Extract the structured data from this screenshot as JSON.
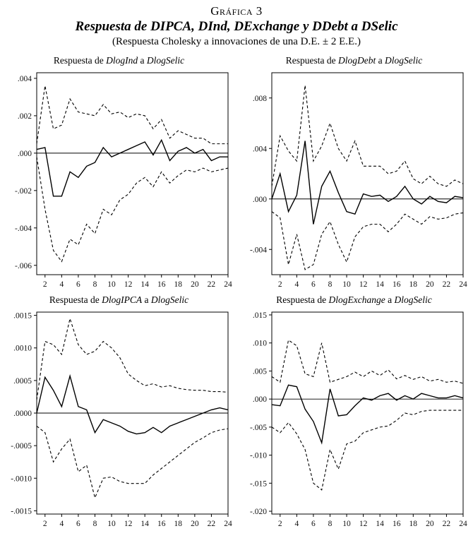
{
  "header": {
    "label": "Gráfica 3",
    "title": "Respuesta de DIPCA, DInd, DExchange y DDebt a DSelic",
    "subtitle": "(Respuesta Cholesky a innovaciones de una D.E. ± 2 E.E.)"
  },
  "chart_data": [
    {
      "type": "line",
      "name": "dlogind",
      "title_parts": {
        "prefix": "Respuesta de ",
        "var1": "DlogInd",
        "mid": " a ",
        "var2": "DlogSelic"
      },
      "x": [
        1,
        2,
        3,
        4,
        5,
        6,
        7,
        8,
        9,
        10,
        11,
        12,
        13,
        14,
        15,
        16,
        17,
        18,
        19,
        20,
        21,
        22,
        23,
        24
      ],
      "xlim": [
        1,
        24
      ],
      "ylim": [
        -0.0065,
        0.0043
      ],
      "x_ticks": [
        2,
        4,
        6,
        8,
        10,
        12,
        14,
        16,
        18,
        20,
        22,
        24
      ],
      "y_ticks": [
        {
          "value": 0.004,
          "label": ".004"
        },
        {
          "value": 0.002,
          "label": ".002"
        },
        {
          "value": 0.0,
          "label": ".000"
        },
        {
          "value": -0.002,
          "label": "-.002"
        },
        {
          "value": -0.004,
          "label": "-.004"
        },
        {
          "value": -0.006,
          "label": "-.006"
        }
      ],
      "series": [
        {
          "name": "response",
          "style": "solid",
          "values": [
            0.0002,
            0.0003,
            -0.0023,
            -0.0023,
            -0.001,
            -0.0013,
            -0.0007,
            -0.0005,
            0.0003,
            -0.0002,
            0.0,
            0.0002,
            0.0004,
            0.0006,
            -0.0001,
            0.0007,
            -0.0004,
            0.0001,
            0.0003,
            0.0,
            0.0002,
            -0.0004,
            -0.0002,
            -0.0002
          ]
        },
        {
          "name": "upper-band",
          "style": "dashed",
          "values": [
            0.0005,
            0.0036,
            0.0013,
            0.0015,
            0.0029,
            0.0022,
            0.0021,
            0.002,
            0.0026,
            0.0021,
            0.0022,
            0.0019,
            0.0021,
            0.002,
            0.0013,
            0.0018,
            0.0008,
            0.0012,
            0.001,
            0.0008,
            0.0008,
            0.0005,
            0.0005,
            0.0005
          ]
        },
        {
          "name": "lower-band",
          "style": "dashed",
          "values": [
            -0.0002,
            -0.003,
            -0.0052,
            -0.0058,
            -0.0046,
            -0.0049,
            -0.0038,
            -0.0043,
            -0.003,
            -0.0033,
            -0.0025,
            -0.0022,
            -0.0016,
            -0.0013,
            -0.0018,
            -0.001,
            -0.0016,
            -0.0012,
            -0.0009,
            -0.001,
            -0.0008,
            -0.001,
            -0.0009,
            -0.0008
          ]
        }
      ]
    },
    {
      "type": "line",
      "name": "dlogdebt",
      "title_parts": {
        "prefix": "Respuesta de ",
        "var1": "DlogDebt",
        "mid": " a ",
        "var2": "DlogSelic"
      },
      "x": [
        1,
        2,
        3,
        4,
        5,
        6,
        7,
        8,
        9,
        10,
        11,
        12,
        13,
        14,
        15,
        16,
        17,
        18,
        19,
        20,
        21,
        22,
        23,
        24
      ],
      "xlim": [
        1,
        24
      ],
      "ylim": [
        -0.006,
        0.01
      ],
      "x_ticks": [
        2,
        4,
        6,
        8,
        10,
        12,
        14,
        16,
        18,
        20,
        22,
        24
      ],
      "y_ticks": [
        {
          "value": 0.008,
          "label": ".008"
        },
        {
          "value": 0.004,
          "label": ".004"
        },
        {
          "value": 0.0,
          "label": ".000"
        },
        {
          "value": -0.004,
          "label": "-.004"
        }
      ],
      "series": [
        {
          "name": "response",
          "style": "solid",
          "values": [
            0.0,
            0.002,
            -0.001,
            0.0003,
            0.0046,
            -0.002,
            0.001,
            0.0022,
            0.0005,
            -0.001,
            -0.0012,
            0.0004,
            0.0002,
            0.0003,
            -0.0002,
            0.0002,
            0.001,
            0.0,
            -0.0004,
            0.0002,
            -0.0002,
            -0.0003,
            0.0002,
            0.0001
          ]
        },
        {
          "name": "upper-band",
          "style": "dashed",
          "values": [
            0.001,
            0.005,
            0.0038,
            0.003,
            0.009,
            0.003,
            0.0042,
            0.006,
            0.004,
            0.003,
            0.0046,
            0.0026,
            0.0026,
            0.0026,
            0.002,
            0.0022,
            0.003,
            0.0016,
            0.0012,
            0.0018,
            0.0012,
            0.001,
            0.0015,
            0.0012
          ]
        },
        {
          "name": "lower-band",
          "style": "dashed",
          "values": [
            -0.001,
            -0.0015,
            -0.0052,
            -0.0028,
            -0.0056,
            -0.0052,
            -0.0028,
            -0.0018,
            -0.0036,
            -0.005,
            -0.003,
            -0.0022,
            -0.002,
            -0.002,
            -0.0026,
            -0.002,
            -0.0012,
            -0.0016,
            -0.002,
            -0.0014,
            -0.0016,
            -0.0015,
            -0.0012,
            -0.0011
          ]
        }
      ]
    },
    {
      "type": "line",
      "name": "dlogipca",
      "title_parts": {
        "prefix": "Respuesta de ",
        "var1": "DlogIPCA",
        "mid": " a ",
        "var2": "DlogSelic"
      },
      "x": [
        1,
        2,
        3,
        4,
        5,
        6,
        7,
        8,
        9,
        10,
        11,
        12,
        13,
        14,
        15,
        16,
        17,
        18,
        19,
        20,
        21,
        22,
        23,
        24
      ],
      "xlim": [
        1,
        24
      ],
      "ylim": [
        -0.00155,
        0.00155
      ],
      "x_ticks": [
        2,
        4,
        6,
        8,
        10,
        12,
        14,
        16,
        18,
        20,
        22,
        24
      ],
      "y_ticks": [
        {
          "value": 0.0015,
          "label": ".0015"
        },
        {
          "value": 0.001,
          "label": ".0010"
        },
        {
          "value": 0.0005,
          "label": ".0005"
        },
        {
          "value": 0.0,
          "label": ".0000"
        },
        {
          "value": -0.0005,
          "label": "-.0005"
        },
        {
          "value": -0.001,
          "label": "-.0010"
        },
        {
          "value": -0.0015,
          "label": "-.0015"
        }
      ],
      "series": [
        {
          "name": "response",
          "style": "solid",
          "values": [
            0.0,
            0.00055,
            0.00035,
            0.0001,
            0.00057,
            0.0001,
            5e-05,
            -0.0003,
            -0.0001,
            -0.00015,
            -0.0002,
            -0.00028,
            -0.00032,
            -0.0003,
            -0.00022,
            -0.0003,
            -0.0002,
            -0.00015,
            -0.0001,
            -5e-05,
            0.0,
            5e-05,
            8e-05,
            5e-05
          ]
        },
        {
          "name": "upper-band",
          "style": "dashed",
          "values": [
            0.0002,
            0.0011,
            0.00105,
            0.0009,
            0.00145,
            0.00105,
            0.0009,
            0.00095,
            0.0011,
            0.001,
            0.00085,
            0.0006,
            0.0005,
            0.00042,
            0.00045,
            0.0004,
            0.00042,
            0.00038,
            0.00036,
            0.00035,
            0.00035,
            0.00033,
            0.00033,
            0.00032
          ]
        },
        {
          "name": "lower-band",
          "style": "dashed",
          "values": [
            -0.0002,
            -0.0003,
            -0.00075,
            -0.00055,
            -0.0004,
            -0.0009,
            -0.0008,
            -0.0013,
            -0.001,
            -0.00098,
            -0.00105,
            -0.00108,
            -0.00108,
            -0.00108,
            -0.00095,
            -0.00085,
            -0.00075,
            -0.00065,
            -0.00055,
            -0.00045,
            -0.00038,
            -0.0003,
            -0.00026,
            -0.00024
          ]
        }
      ]
    },
    {
      "type": "line",
      "name": "dlogexchange",
      "title_parts": {
        "prefix": "Respuesta de ",
        "var1": "DlogExchange",
        "mid": " a ",
        "var2": "DlogSelic"
      },
      "x": [
        1,
        2,
        3,
        4,
        5,
        6,
        7,
        8,
        9,
        10,
        11,
        12,
        13,
        14,
        15,
        16,
        17,
        18,
        19,
        20,
        21,
        22,
        23,
        24
      ],
      "xlim": [
        1,
        24
      ],
      "ylim": [
        -0.0205,
        0.0155
      ],
      "x_ticks": [
        2,
        4,
        6,
        8,
        10,
        12,
        14,
        16,
        18,
        20,
        22,
        24
      ],
      "y_ticks": [
        {
          "value": 0.015,
          "label": ".015"
        },
        {
          "value": 0.01,
          "label": ".010"
        },
        {
          "value": 0.005,
          "label": ".005"
        },
        {
          "value": 0.0,
          "label": ".000"
        },
        {
          "value": -0.005,
          "label": "-.005"
        },
        {
          "value": -0.01,
          "label": "-.010"
        },
        {
          "value": -0.015,
          "label": "-.015"
        },
        {
          "value": -0.02,
          "label": "-.020"
        }
      ],
      "series": [
        {
          "name": "response",
          "style": "solid",
          "values": [
            -0.001,
            -0.0012,
            0.0025,
            0.0022,
            -0.0018,
            -0.004,
            -0.0078,
            0.0018,
            -0.003,
            -0.0028,
            -0.0012,
            0.0002,
            -0.0002,
            0.0006,
            0.001,
            -0.0002,
            0.0006,
            0.0,
            0.001,
            0.0006,
            0.0002,
            0.0002,
            0.0006,
            0.0002
          ]
        },
        {
          "name": "upper-band",
          "style": "dashed",
          "values": [
            0.004,
            0.003,
            0.0105,
            0.0095,
            0.0045,
            0.004,
            0.01,
            0.003,
            0.0035,
            0.004,
            0.0048,
            0.004,
            0.005,
            0.0042,
            0.0052,
            0.0036,
            0.0042,
            0.0035,
            0.004,
            0.0032,
            0.0035,
            0.003,
            0.0032,
            0.0028
          ]
        },
        {
          "name": "lower-band",
          "style": "dashed",
          "values": [
            -0.005,
            -0.006,
            -0.0042,
            -0.0062,
            -0.009,
            -0.015,
            -0.0162,
            -0.009,
            -0.0125,
            -0.008,
            -0.0075,
            -0.006,
            -0.0055,
            -0.005,
            -0.0048,
            -0.0038,
            -0.0025,
            -0.0028,
            -0.0022,
            -0.002,
            -0.002,
            -0.002,
            -0.002,
            -0.002
          ]
        }
      ]
    }
  ]
}
